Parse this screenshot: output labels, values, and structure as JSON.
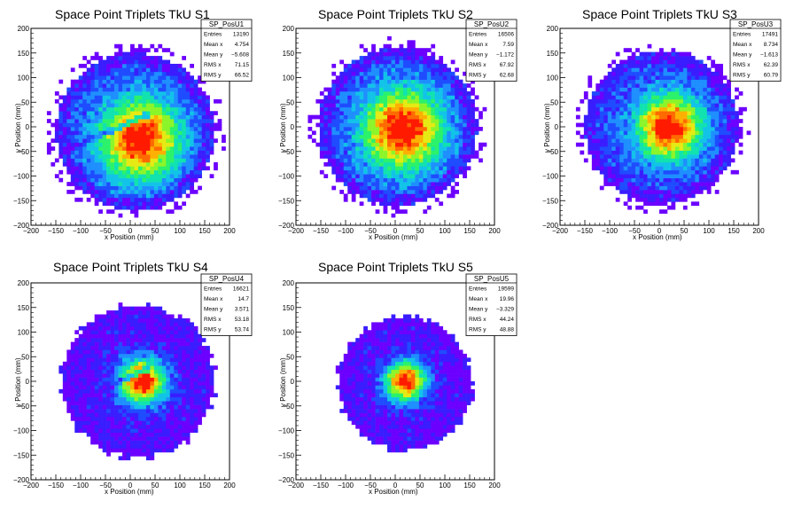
{
  "chart_data": [
    {
      "type": "heatmap",
      "title": "Space Point Triplets TkU S1",
      "xlabel": "x Position (mm)",
      "ylabel": "y Position (mm)",
      "xlim": [
        -200,
        200
      ],
      "ylim": [
        -200,
        200
      ],
      "xticks": [
        "−200",
        "−150",
        "−100",
        "−50",
        "0",
        "50",
        "100",
        "150",
        "200"
      ],
      "yticks": [
        "−200",
        "−150",
        "−100",
        "−50",
        "0",
        "50",
        "100",
        "150",
        "200"
      ],
      "stats": {
        "name": "SP_PosU1",
        "rows": [
          {
            "label": "Entries",
            "value": "13190"
          },
          {
            "label": "Mean x",
            "value": "4.754"
          },
          {
            "label": "Mean y",
            "value": "−5.608"
          },
          {
            "label": "RMS x",
            "value": "71.15"
          },
          {
            "label": "RMS y",
            "value": "66.52"
          }
        ]
      },
      "distribution": {
        "radius": 160,
        "center": [
          10,
          -10
        ],
        "peak_center": [
          20,
          -25
        ],
        "peak_sigma": 55,
        "gap_line": true,
        "halo": 0
      }
    },
    {
      "type": "heatmap",
      "title": "Space Point Triplets TkU S2",
      "xlabel": "x Position (mm)",
      "ylabel": "y Position (mm)",
      "xlim": [
        -200,
        200
      ],
      "ylim": [
        -200,
        200
      ],
      "xticks": [
        "−200",
        "−150",
        "−100",
        "−50",
        "0",
        "50",
        "100",
        "150",
        "200"
      ],
      "yticks": [
        "−200",
        "−150",
        "−100",
        "−50",
        "0",
        "50",
        "100",
        "150",
        "200"
      ],
      "stats": {
        "name": "SP_PosU2",
        "rows": [
          {
            "label": "Entries",
            "value": "16506"
          },
          {
            "label": "Mean x",
            "value": "7.59"
          },
          {
            "label": "Mean y",
            "value": "−1.172"
          },
          {
            "label": "RMS x",
            "value": "67.92"
          },
          {
            "label": "RMS y",
            "value": "62.68"
          }
        ]
      },
      "distribution": {
        "radius": 160,
        "center": [
          5,
          0
        ],
        "peak_center": [
          15,
          -5
        ],
        "peak_sigma": 55,
        "gap_line": false,
        "halo": 0
      }
    },
    {
      "type": "heatmap",
      "title": "Space Point Triplets TkU S3",
      "xlabel": "x Position (mm)",
      "ylabel": "y Position (mm)",
      "xlim": [
        -200,
        200
      ],
      "ylim": [
        -200,
        200
      ],
      "xticks": [
        "−200",
        "−150",
        "−100",
        "−50",
        "0",
        "50",
        "100",
        "150",
        "200"
      ],
      "yticks": [
        "−200",
        "−150",
        "−100",
        "−50",
        "0",
        "50",
        "100",
        "150",
        "200"
      ],
      "stats": {
        "name": "SP_PosU3",
        "rows": [
          {
            "label": "Entries",
            "value": "17491"
          },
          {
            "label": "Mean x",
            "value": "8.734"
          },
          {
            "label": "Mean y",
            "value": "−1.613"
          },
          {
            "label": "RMS x",
            "value": "62.39"
          },
          {
            "label": "RMS y",
            "value": "60.79"
          }
        ]
      },
      "distribution": {
        "radius": 155,
        "center": [
          5,
          0
        ],
        "peak_center": [
          20,
          0
        ],
        "peak_sigma": 45,
        "gap_line": false,
        "halo": 0
      }
    },
    {
      "type": "heatmap",
      "title": "Space Point Triplets TkU S4",
      "xlabel": "x Position (mm)",
      "ylabel": "y Position (mm)",
      "xlim": [
        -200,
        200
      ],
      "ylim": [
        -200,
        200
      ],
      "xticks": [
        "−200",
        "−150",
        "−100",
        "−50",
        "0",
        "50",
        "100",
        "150",
        "200"
      ],
      "yticks": [
        "−200",
        "−150",
        "−100",
        "−50",
        "0",
        "50",
        "100",
        "150",
        "200"
      ],
      "stats": {
        "name": "SP_PosU4",
        "rows": [
          {
            "label": "Entries",
            "value": "16621"
          },
          {
            "label": "Mean x",
            "value": "14.7"
          },
          {
            "label": "Mean y",
            "value": "3.571"
          },
          {
            "label": "RMS x",
            "value": "53.18"
          },
          {
            "label": "RMS y",
            "value": "53.74"
          }
        ]
      },
      "distribution": {
        "radius": 160,
        "center": [
          15,
          0
        ],
        "peak_center": [
          25,
          0
        ],
        "peak_sigma": 32,
        "gap_line": true,
        "halo": 1
      }
    },
    {
      "type": "heatmap",
      "title": "Space Point Triplets TkU S5",
      "xlabel": "x Position (mm)",
      "ylabel": "y Position (mm)",
      "xlim": [
        -200,
        200
      ],
      "ylim": [
        -200,
        200
      ],
      "xticks": [
        "−200",
        "−150",
        "−100",
        "−50",
        "0",
        "50",
        "100",
        "150",
        "200"
      ],
      "yticks": [
        "−200",
        "−150",
        "−100",
        "−50",
        "0",
        "50",
        "100",
        "150",
        "200"
      ],
      "stats": {
        "name": "SP_PosU5",
        "rows": [
          {
            "label": "Entries",
            "value": "19599"
          },
          {
            "label": "Mean x",
            "value": "19.96"
          },
          {
            "label": "Mean y",
            "value": "−3.329"
          },
          {
            "label": "RMS x",
            "value": "44.24"
          },
          {
            "label": "RMS y",
            "value": "48.88"
          }
        ]
      },
      "distribution": {
        "radius": 140,
        "center": [
          20,
          -5
        ],
        "peak_center": [
          20,
          0
        ],
        "peak_sigma": 28,
        "gap_line": false,
        "halo": 1
      }
    }
  ],
  "colors": {
    "palette": [
      "#6c00ff",
      "#3a1dff",
      "#1f4cff",
      "#1f8fff",
      "#12c3e8",
      "#11e2b0",
      "#2bf26a",
      "#8cf52a",
      "#e6ea14",
      "#ffb000",
      "#ff6a00",
      "#ff1a00"
    ],
    "frame": "#000000",
    "background": "#ffffff"
  }
}
